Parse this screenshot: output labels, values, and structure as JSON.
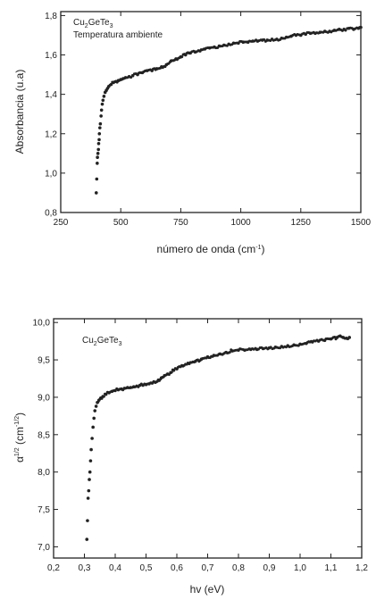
{
  "chart_data": [
    {
      "type": "scatter",
      "xlabel_base": "número de onda (cm",
      "xlabel_sup": "-1",
      "xlabel_close": ")",
      "ylabel": "Absorbancia (u.a)",
      "annotation_formula": {
        "a": "Cu",
        "b": "2",
        "c": "GeTe",
        "d": "3"
      },
      "annotation_line2": "Temperatura ambiente",
      "xlim": [
        250,
        1500
      ],
      "ylim": [
        0.8,
        1.82
      ],
      "xticks": [
        250,
        500,
        750,
        1000,
        1250,
        1500
      ],
      "yticks": [
        0.8,
        1.0,
        1.2,
        1.4,
        1.6,
        1.8
      ],
      "xtick_labels": [
        "250",
        "500",
        "750",
        "1000",
        "1250",
        "1500"
      ],
      "ytick_labels": [
        "0,8",
        "1,0",
        "1,2",
        "1,4",
        "1,6",
        "1,8"
      ],
      "series": [
        {
          "x": [
            398,
            400,
            402,
            403,
            405,
            407,
            408,
            410,
            411,
            413,
            415,
            418,
            420,
            423,
            426,
            430,
            435,
            440,
            445,
            450,
            460,
            470,
            480,
            490,
            500,
            510,
            520,
            535,
            550,
            570,
            590,
            610,
            630,
            650,
            670,
            690,
            710,
            730,
            750,
            770,
            790,
            810,
            830,
            850,
            870,
            890,
            910,
            930,
            950,
            970,
            990,
            1010,
            1030,
            1050,
            1070,
            1090,
            1110,
            1130,
            1150,
            1170,
            1190,
            1210,
            1230,
            1250,
            1270,
            1290,
            1310,
            1330,
            1350,
            1370,
            1390,
            1410,
            1430,
            1450,
            1470,
            1490,
            1500
          ],
          "y": [
            0.9,
            0.97,
            1.05,
            1.08,
            1.1,
            1.12,
            1.15,
            1.17,
            1.2,
            1.23,
            1.25,
            1.29,
            1.32,
            1.35,
            1.37,
            1.39,
            1.41,
            1.42,
            1.43,
            1.44,
            1.45,
            1.46,
            1.465,
            1.47,
            1.475,
            1.48,
            1.485,
            1.49,
            1.495,
            1.5,
            1.51,
            1.52,
            1.52,
            1.53,
            1.54,
            1.55,
            1.57,
            1.58,
            1.59,
            1.6,
            1.61,
            1.615,
            1.62,
            1.63,
            1.635,
            1.64,
            1.645,
            1.65,
            1.655,
            1.66,
            1.66,
            1.665,
            1.665,
            1.67,
            1.67,
            1.675,
            1.675,
            1.68,
            1.68,
            1.685,
            1.69,
            1.695,
            1.7,
            1.7,
            1.705,
            1.71,
            1.71,
            1.715,
            1.72,
            1.72,
            1.725,
            1.73,
            1.73,
            1.735,
            1.73,
            1.735,
            1.74
          ]
        }
      ]
    },
    {
      "type": "scatter",
      "xlabel": "hv (eV)",
      "ylabel_base": "α",
      "ylabel_sup1": "1/2",
      "ylabel_mid": " (cm",
      "ylabel_sup2": "-1/2",
      "ylabel_close": ")",
      "annotation_formula": {
        "a": "Cu",
        "b": "2",
        "c": "GeTe",
        "d": "3"
      },
      "xlim": [
        0.2,
        1.2
      ],
      "ylim": [
        6.85,
        10.05
      ],
      "xticks": [
        0.2,
        0.3,
        0.4,
        0.5,
        0.6,
        0.7,
        0.8,
        0.9,
        1.0,
        1.1,
        1.2
      ],
      "yticks": [
        7.0,
        7.5,
        8.0,
        8.5,
        9.0,
        9.5,
        10.0
      ],
      "xtick_labels": [
        "0,2",
        "0,3",
        "0,4",
        "0,5",
        "0,6",
        "0,7",
        "0,8",
        "0,9",
        "1,0",
        "1,1",
        "1,2"
      ],
      "ytick_labels": [
        "7,0",
        "7,5",
        "8,0",
        "8,5",
        "9,0",
        "9,5",
        "10,0"
      ],
      "series": [
        {
          "x": [
            0.308,
            0.31,
            0.312,
            0.314,
            0.316,
            0.318,
            0.32,
            0.322,
            0.325,
            0.328,
            0.331,
            0.334,
            0.338,
            0.342,
            0.347,
            0.353,
            0.36,
            0.37,
            0.38,
            0.39,
            0.4,
            0.41,
            0.42,
            0.43,
            0.44,
            0.45,
            0.46,
            0.47,
            0.48,
            0.49,
            0.5,
            0.51,
            0.52,
            0.53,
            0.54,
            0.55,
            0.56,
            0.57,
            0.58,
            0.59,
            0.6,
            0.62,
            0.64,
            0.66,
            0.68,
            0.7,
            0.72,
            0.74,
            0.76,
            0.78,
            0.8,
            0.82,
            0.84,
            0.86,
            0.88,
            0.9,
            0.92,
            0.94,
            0.96,
            0.98,
            1.0,
            1.02,
            1.04,
            1.06,
            1.08,
            1.1,
            1.12,
            1.13,
            1.14,
            1.15,
            1.16
          ],
          "y": [
            7.1,
            7.35,
            7.65,
            7.75,
            7.9,
            8.0,
            8.15,
            8.3,
            8.45,
            8.6,
            8.72,
            8.82,
            8.88,
            8.93,
            8.96,
            8.99,
            9.01,
            9.04,
            9.06,
            9.08,
            9.09,
            9.1,
            9.11,
            9.12,
            9.13,
            9.13,
            9.14,
            9.15,
            9.16,
            9.16,
            9.17,
            9.18,
            9.19,
            9.2,
            9.23,
            9.26,
            9.29,
            9.31,
            9.33,
            9.36,
            9.38,
            9.42,
            9.45,
            9.48,
            9.51,
            9.54,
            9.56,
            9.58,
            9.6,
            9.62,
            9.63,
            9.63,
            9.64,
            9.64,
            9.65,
            9.66,
            9.67,
            9.68,
            9.69,
            9.7,
            9.71,
            9.72,
            9.74,
            9.75,
            9.76,
            9.78,
            9.8,
            9.82,
            9.8,
            9.79,
            9.8
          ]
        }
      ]
    }
  ]
}
